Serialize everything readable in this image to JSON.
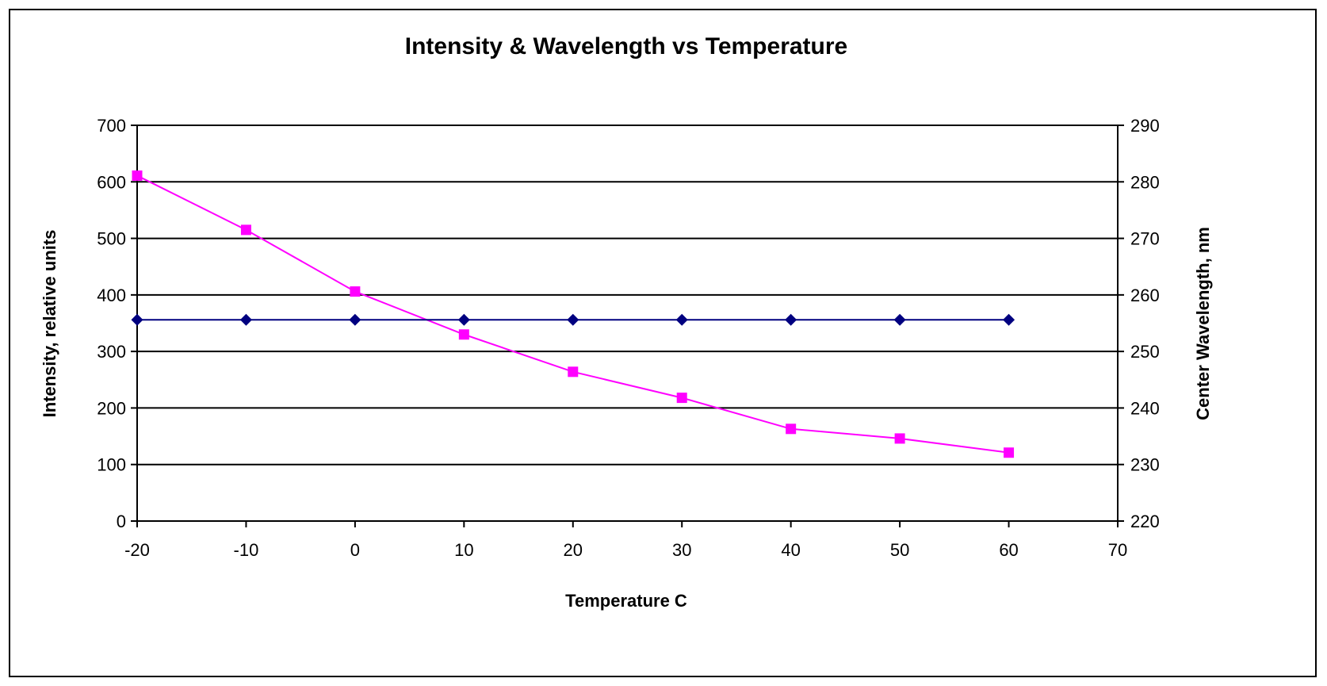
{
  "chart_data": {
    "type": "line",
    "title": "Intensity & Wavelength vs Temperature",
    "xlabel": "Temperature C",
    "ylabel": "Intensity, relative units",
    "y2label": "Center Wavelength, nm",
    "xlim": [
      -20,
      70
    ],
    "ylim": [
      0,
      700
    ],
    "y2lim": [
      220,
      290
    ],
    "x_ticks": [
      "-20",
      "-10",
      "0",
      "10",
      "20",
      "30",
      "40",
      "50",
      "60",
      "70"
    ],
    "y_ticks": [
      "0",
      "100",
      "200",
      "300",
      "400",
      "500",
      "600",
      "700"
    ],
    "y2_ticks": [
      "220",
      "230",
      "240",
      "250",
      "260",
      "270",
      "280",
      "290"
    ],
    "grid": true,
    "legend": "none",
    "series": [
      {
        "axis": "left",
        "color": "#ff00ff",
        "marker": "square",
        "x": [
          -20,
          -10,
          0,
          10,
          20,
          30,
          40,
          50,
          60
        ],
        "values": [
          611,
          515,
          406,
          330,
          264,
          218,
          163,
          146,
          121
        ]
      },
      {
        "axis": "right",
        "color": "#000080",
        "marker": "diamond",
        "x": [
          -20,
          -10,
          0,
          10,
          20,
          30,
          40,
          50,
          60
        ],
        "values": [
          255.6,
          255.6,
          255.6,
          255.6,
          255.6,
          255.6,
          255.6,
          255.6,
          255.6
        ]
      }
    ]
  }
}
